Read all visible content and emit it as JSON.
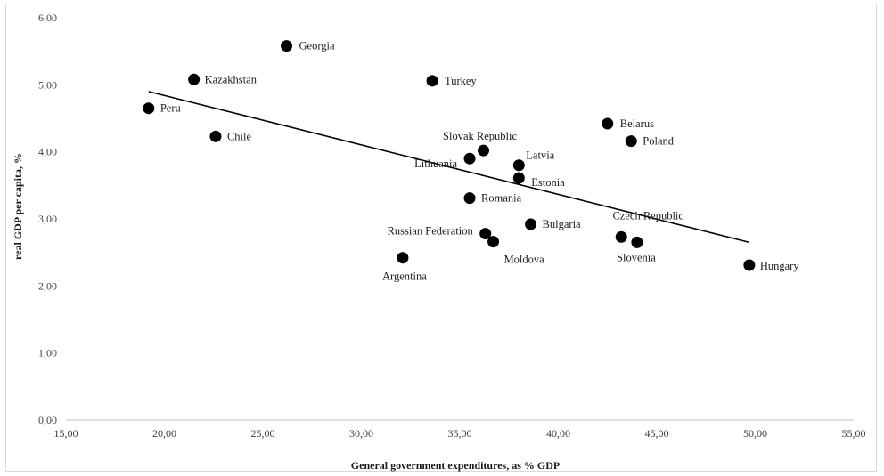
{
  "chart_data": {
    "type": "scatter",
    "title": "",
    "xlabel": "General government expenditures, as % GDP",
    "ylabel": "real GDP per capita, %",
    "xlim": [
      15,
      55
    ],
    "ylim": [
      0,
      6
    ],
    "xticks": [
      "15,00",
      "20,00",
      "25,00",
      "30,00",
      "35,00",
      "40,00",
      "45,00",
      "50,00",
      "55,00"
    ],
    "yticks": [
      "0,00",
      "1,00",
      "2,00",
      "3,00",
      "4,00",
      "5,00",
      "6,00"
    ],
    "grid": false,
    "legend": "none",
    "marker_color": "#000000",
    "points": [
      {
        "label": "Georgia",
        "x": 26.2,
        "y": 5.58
      },
      {
        "label": "Kazakhstan",
        "x": 21.5,
        "y": 5.08
      },
      {
        "label": "Turkey",
        "x": 33.6,
        "y": 5.06
      },
      {
        "label": "Peru",
        "x": 19.2,
        "y": 4.65
      },
      {
        "label": "Belarus",
        "x": 42.5,
        "y": 4.42
      },
      {
        "label": "Chile",
        "x": 22.6,
        "y": 4.23
      },
      {
        "label": "Poland",
        "x": 43.7,
        "y": 4.16
      },
      {
        "label": "Slovak Republic",
        "x": 36.2,
        "y": 4.02
      },
      {
        "label": "Lithuania",
        "x": 35.5,
        "y": 3.9
      },
      {
        "label": "Latvia",
        "x": 38.0,
        "y": 3.8
      },
      {
        "label": "Estonia",
        "x": 38.0,
        "y": 3.61
      },
      {
        "label": "Romania",
        "x": 35.5,
        "y": 3.31
      },
      {
        "label": "Bulgaria",
        "x": 38.6,
        "y": 2.92
      },
      {
        "label": "Russian Federation",
        "x": 36.3,
        "y": 2.78
      },
      {
        "label": "Czech Republic",
        "x": 43.2,
        "y": 2.73
      },
      {
        "label": "Moldova",
        "x": 36.7,
        "y": 2.66
      },
      {
        "label": "Slovenia",
        "x": 44.0,
        "y": 2.65
      },
      {
        "label": "Argentina",
        "x": 32.1,
        "y": 2.42
      },
      {
        "label": "Hungary",
        "x": 49.7,
        "y": 2.31
      }
    ],
    "trendline": {
      "type": "linear",
      "x": [
        19.2,
        49.7
      ],
      "y": [
        4.9,
        2.65
      ]
    }
  }
}
